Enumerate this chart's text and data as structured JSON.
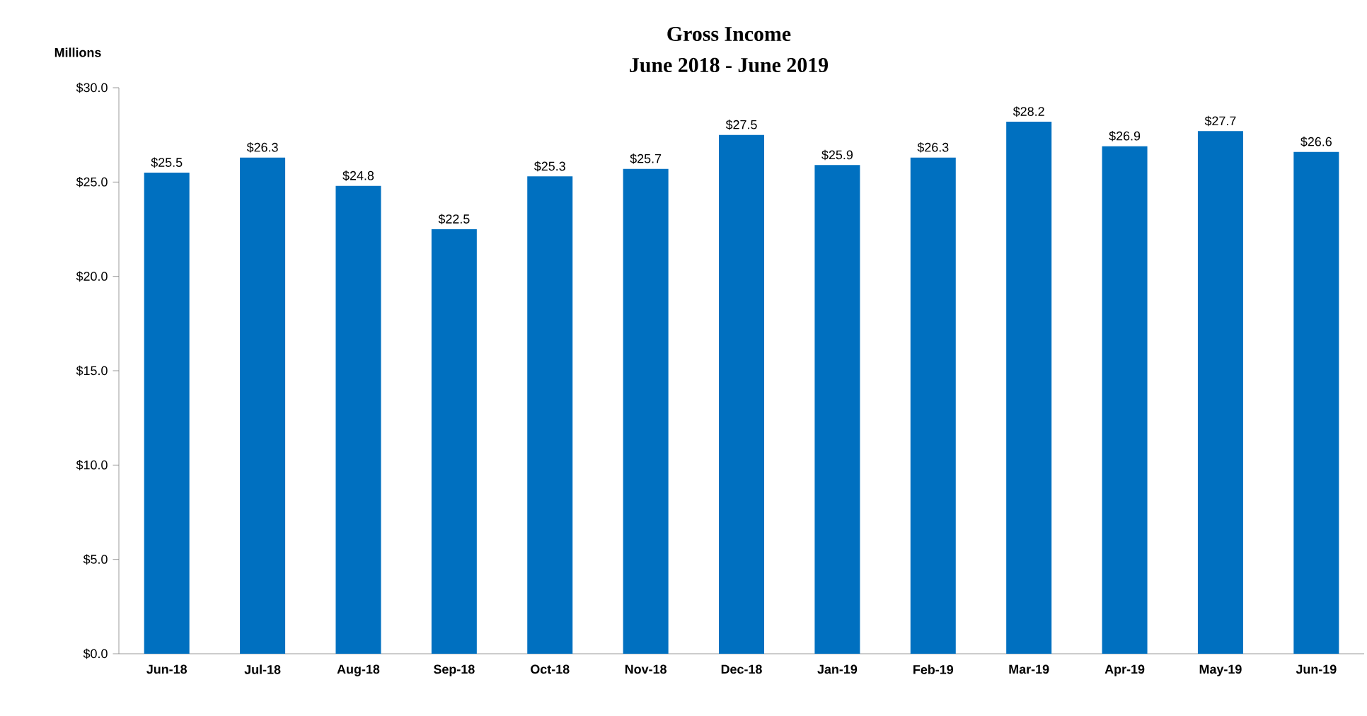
{
  "chart_data": {
    "type": "bar",
    "title": "Gross Income",
    "subtitle": "June 2018 - June 2019",
    "ylabel": "Millions",
    "categories": [
      "Jun-18",
      "Jul-18",
      "Aug-18",
      "Sep-18",
      "Oct-18",
      "Nov-18",
      "Dec-18",
      "Jan-19",
      "Feb-19",
      "Mar-19",
      "Apr-19",
      "May-19",
      "Jun-19"
    ],
    "values": [
      25.5,
      26.3,
      24.8,
      22.5,
      25.3,
      25.7,
      27.5,
      25.9,
      26.3,
      28.2,
      26.9,
      27.7,
      26.6
    ],
    "value_labels": [
      "$25.5",
      "$26.3",
      "$24.8",
      "$22.5",
      "$25.3",
      "$25.7",
      "$27.5",
      "$25.9",
      "$26.3",
      "$28.2",
      "$26.9",
      "$27.7",
      "$26.6"
    ],
    "color": "#0070c0",
    "ylim": [
      0,
      30
    ],
    "yticks": [
      {
        "value": 0,
        "label": "$0.0"
      },
      {
        "value": 5,
        "label": "$5.0"
      },
      {
        "value": 10,
        "label": "$10.0"
      },
      {
        "value": 15,
        "label": "$15.0"
      },
      {
        "value": 20,
        "label": "$20.0"
      },
      {
        "value": 25,
        "label": "$25.0"
      },
      {
        "value": 30,
        "label": "$30.0"
      }
    ],
    "grid": false
  }
}
